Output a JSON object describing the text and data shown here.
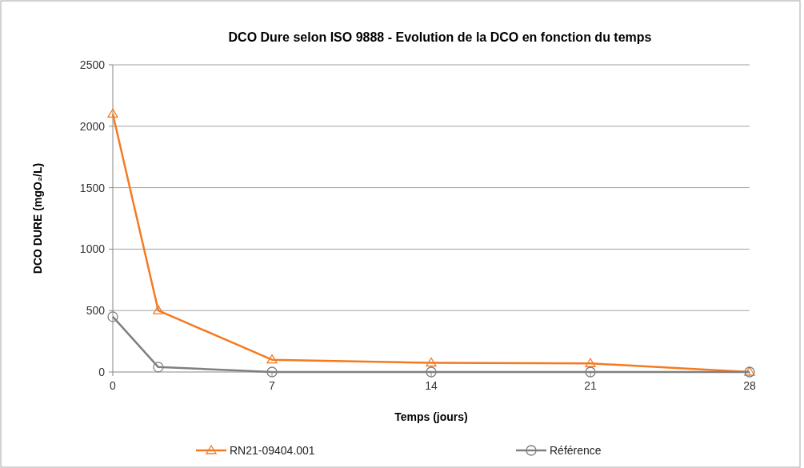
{
  "chart_data": {
    "type": "line",
    "title": "DCO Dure selon ISO 9888 - Evolution de la DCO en fonction du temps",
    "xlabel": "Temps (jours)",
    "ylabel": "DCO DURE (mgO₂/L)",
    "x": [
      0,
      2,
      7,
      14,
      21,
      28
    ],
    "xlim": [
      0,
      28
    ],
    "xticks": [
      0,
      7,
      14,
      21,
      28
    ],
    "ylim": [
      0,
      2500
    ],
    "yticks": [
      0,
      500,
      1000,
      1500,
      2000,
      2500
    ],
    "grid": "y",
    "legend": "bottom",
    "series": [
      {
        "name": "RN21-09404.001",
        "color": "#f47a20",
        "marker": "triangle",
        "values": [
          2100,
          500,
          100,
          75,
          70,
          0
        ]
      },
      {
        "name": "Référence",
        "color": "#7f7f7f",
        "marker": "circle",
        "values": [
          450,
          40,
          0,
          0,
          0,
          0
        ]
      }
    ]
  }
}
